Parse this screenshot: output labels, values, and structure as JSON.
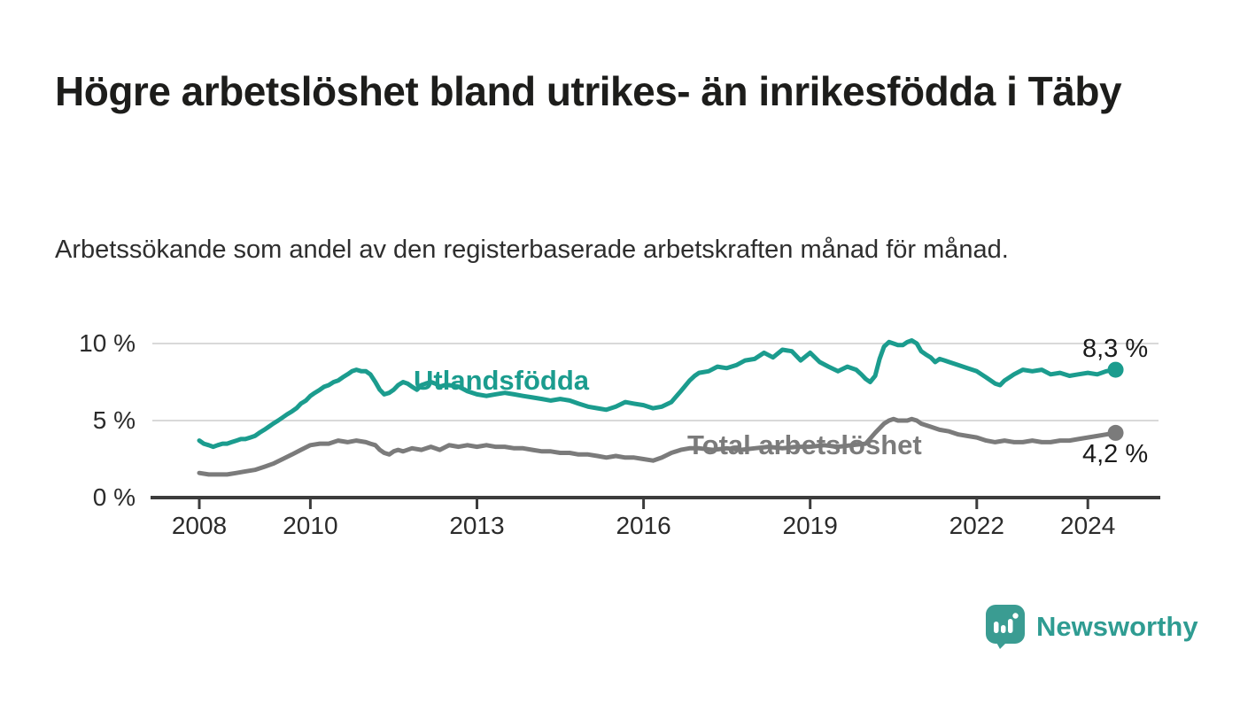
{
  "header": {
    "title": "Högre arbetslöshet bland utrikes- än inrikesfödda i Täby",
    "subtitle": "Arbetssökande som andel av den registerbaserade arbetskraften månad för månad."
  },
  "footer": {
    "brand": "Newsworthy",
    "logo_icon": "speech-bubble-bar-chart-icon"
  },
  "colors": {
    "accent_teal": "#1b9c8e",
    "logo_teal": "#3a9c92",
    "gray_line": "#7b7b7b",
    "title_text": "#1d1d1b",
    "subtitle_text": "#2e2e2e",
    "axis": "#3c3c3c",
    "grid": "#d9d9d9",
    "tick_label": "#2b2b2b",
    "value_label": "#1a1a1a"
  },
  "chart_data": {
    "type": "line",
    "unit": "%",
    "grid": "horizontal",
    "legend_position": "inline-labels",
    "xlim": [
      2007.1,
      2025.3
    ],
    "ylim": [
      0,
      11.5
    ],
    "y_ticks": [
      {
        "value": 0,
        "label": "0 %"
      },
      {
        "value": 5,
        "label": "5 %"
      },
      {
        "value": 10,
        "label": "10 %"
      }
    ],
    "x_ticks": [
      {
        "value": 2008,
        "label": "2008"
      },
      {
        "value": 2010,
        "label": "2010"
      },
      {
        "value": 2013,
        "label": "2013"
      },
      {
        "value": 2016,
        "label": "2016"
      },
      {
        "value": 2019,
        "label": "2019"
      },
      {
        "value": 2022,
        "label": "2022"
      },
      {
        "value": 2024,
        "label": "2024"
      }
    ],
    "series": [
      {
        "name": "Utlandsfödda",
        "color": "#1b9c8e",
        "end_label": "8,3 %",
        "end_value": 8.3,
        "points": [
          [
            2008,
            3.7
          ],
          [
            2008.08,
            3.5
          ],
          [
            2008.17,
            3.4
          ],
          [
            2008.25,
            3.3
          ],
          [
            2008.33,
            3.4
          ],
          [
            2008.42,
            3.5
          ],
          [
            2008.5,
            3.5
          ],
          [
            2008.58,
            3.6
          ],
          [
            2008.67,
            3.7
          ],
          [
            2008.75,
            3.8
          ],
          [
            2008.83,
            3.8
          ],
          [
            2008.92,
            3.9
          ],
          [
            2009,
            4.0
          ],
          [
            2009.08,
            4.2
          ],
          [
            2009.17,
            4.4
          ],
          [
            2009.25,
            4.6
          ],
          [
            2009.33,
            4.8
          ],
          [
            2009.42,
            5.0
          ],
          [
            2009.5,
            5.2
          ],
          [
            2009.58,
            5.4
          ],
          [
            2009.67,
            5.6
          ],
          [
            2009.75,
            5.8
          ],
          [
            2009.83,
            6.1
          ],
          [
            2009.92,
            6.3
          ],
          [
            2010,
            6.6
          ],
          [
            2010.08,
            6.8
          ],
          [
            2010.17,
            7.0
          ],
          [
            2010.25,
            7.2
          ],
          [
            2010.33,
            7.3
          ],
          [
            2010.42,
            7.5
          ],
          [
            2010.5,
            7.6
          ],
          [
            2010.58,
            7.8
          ],
          [
            2010.67,
            8.0
          ],
          [
            2010.75,
            8.2
          ],
          [
            2010.83,
            8.3
          ],
          [
            2010.92,
            8.2
          ],
          [
            2011,
            8.2
          ],
          [
            2011.08,
            8.0
          ],
          [
            2011.17,
            7.5
          ],
          [
            2011.25,
            7.0
          ],
          [
            2011.33,
            6.7
          ],
          [
            2011.42,
            6.8
          ],
          [
            2011.5,
            7.0
          ],
          [
            2011.58,
            7.3
          ],
          [
            2011.67,
            7.5
          ],
          [
            2011.75,
            7.4
          ],
          [
            2011.83,
            7.2
          ],
          [
            2011.92,
            7.0
          ],
          [
            2012,
            7.3
          ],
          [
            2012.08,
            7.4
          ],
          [
            2012.17,
            7.5
          ],
          [
            2012.25,
            7.4
          ],
          [
            2012.33,
            7.2
          ],
          [
            2012.42,
            7.3
          ],
          [
            2012.5,
            7.3
          ],
          [
            2012.67,
            7.2
          ],
          [
            2012.83,
            6.9
          ],
          [
            2013,
            6.7
          ],
          [
            2013.17,
            6.6
          ],
          [
            2013.33,
            6.7
          ],
          [
            2013.5,
            6.8
          ],
          [
            2013.67,
            6.7
          ],
          [
            2013.83,
            6.6
          ],
          [
            2014,
            6.5
          ],
          [
            2014.17,
            6.4
          ],
          [
            2014.33,
            6.3
          ],
          [
            2014.5,
            6.4
          ],
          [
            2014.67,
            6.3
          ],
          [
            2014.83,
            6.1
          ],
          [
            2015,
            5.9
          ],
          [
            2015.17,
            5.8
          ],
          [
            2015.33,
            5.7
          ],
          [
            2015.5,
            5.9
          ],
          [
            2015.67,
            6.2
          ],
          [
            2015.83,
            6.1
          ],
          [
            2016,
            6.0
          ],
          [
            2016.17,
            5.8
          ],
          [
            2016.33,
            5.9
          ],
          [
            2016.5,
            6.2
          ],
          [
            2016.67,
            6.9
          ],
          [
            2016.83,
            7.6
          ],
          [
            2016.92,
            7.9
          ],
          [
            2017,
            8.1
          ],
          [
            2017.17,
            8.2
          ],
          [
            2017.33,
            8.5
          ],
          [
            2017.5,
            8.4
          ],
          [
            2017.67,
            8.6
          ],
          [
            2017.83,
            8.9
          ],
          [
            2018,
            9.0
          ],
          [
            2018.17,
            9.4
          ],
          [
            2018.33,
            9.1
          ],
          [
            2018.5,
            9.6
          ],
          [
            2018.67,
            9.5
          ],
          [
            2018.83,
            8.9
          ],
          [
            2019,
            9.4
          ],
          [
            2019.17,
            8.8
          ],
          [
            2019.33,
            8.5
          ],
          [
            2019.5,
            8.2
          ],
          [
            2019.67,
            8.5
          ],
          [
            2019.83,
            8.3
          ],
          [
            2019.92,
            8.0
          ],
          [
            2020,
            7.7
          ],
          [
            2020.08,
            7.5
          ],
          [
            2020.17,
            7.9
          ],
          [
            2020.25,
            9.0
          ],
          [
            2020.33,
            9.8
          ],
          [
            2020.42,
            10.1
          ],
          [
            2020.5,
            10.0
          ],
          [
            2020.58,
            9.9
          ],
          [
            2020.67,
            9.9
          ],
          [
            2020.75,
            10.1
          ],
          [
            2020.83,
            10.2
          ],
          [
            2020.92,
            10.0
          ],
          [
            2021,
            9.5
          ],
          [
            2021.08,
            9.3
          ],
          [
            2021.17,
            9.1
          ],
          [
            2021.25,
            8.8
          ],
          [
            2021.33,
            9.0
          ],
          [
            2021.42,
            8.9
          ],
          [
            2021.5,
            8.8
          ],
          [
            2021.67,
            8.6
          ],
          [
            2021.83,
            8.4
          ],
          [
            2022,
            8.2
          ],
          [
            2022.17,
            7.8
          ],
          [
            2022.33,
            7.4
          ],
          [
            2022.42,
            7.3
          ],
          [
            2022.5,
            7.6
          ],
          [
            2022.67,
            8.0
          ],
          [
            2022.83,
            8.3
          ],
          [
            2023,
            8.2
          ],
          [
            2023.17,
            8.3
          ],
          [
            2023.33,
            8.0
          ],
          [
            2023.5,
            8.1
          ],
          [
            2023.67,
            7.9
          ],
          [
            2023.83,
            8.0
          ],
          [
            2024,
            8.1
          ],
          [
            2024.17,
            8.0
          ],
          [
            2024.33,
            8.2
          ],
          [
            2024.5,
            8.3
          ]
        ]
      },
      {
        "name": "Total arbetslöshet",
        "color": "#7b7b7b",
        "end_label": "4,2 %",
        "end_value": 4.2,
        "points": [
          [
            2008,
            1.6
          ],
          [
            2008.17,
            1.5
          ],
          [
            2008.33,
            1.5
          ],
          [
            2008.5,
            1.5
          ],
          [
            2008.67,
            1.6
          ],
          [
            2008.83,
            1.7
          ],
          [
            2009,
            1.8
          ],
          [
            2009.17,
            2.0
          ],
          [
            2009.33,
            2.2
          ],
          [
            2009.5,
            2.5
          ],
          [
            2009.67,
            2.8
          ],
          [
            2009.83,
            3.1
          ],
          [
            2010,
            3.4
          ],
          [
            2010.17,
            3.5
          ],
          [
            2010.33,
            3.5
          ],
          [
            2010.5,
            3.7
          ],
          [
            2010.67,
            3.6
          ],
          [
            2010.83,
            3.7
          ],
          [
            2011,
            3.6
          ],
          [
            2011.08,
            3.5
          ],
          [
            2011.17,
            3.4
          ],
          [
            2011.25,
            3.1
          ],
          [
            2011.33,
            2.9
          ],
          [
            2011.42,
            2.8
          ],
          [
            2011.5,
            3.0
          ],
          [
            2011.58,
            3.1
          ],
          [
            2011.67,
            3.0
          ],
          [
            2011.83,
            3.2
          ],
          [
            2012,
            3.1
          ],
          [
            2012.17,
            3.3
          ],
          [
            2012.33,
            3.1
          ],
          [
            2012.5,
            3.4
          ],
          [
            2012.67,
            3.3
          ],
          [
            2012.83,
            3.4
          ],
          [
            2013,
            3.3
          ],
          [
            2013.17,
            3.4
          ],
          [
            2013.33,
            3.3
          ],
          [
            2013.5,
            3.3
          ],
          [
            2013.67,
            3.2
          ],
          [
            2013.83,
            3.2
          ],
          [
            2014,
            3.1
          ],
          [
            2014.17,
            3.0
          ],
          [
            2014.33,
            3.0
          ],
          [
            2014.5,
            2.9
          ],
          [
            2014.67,
            2.9
          ],
          [
            2014.83,
            2.8
          ],
          [
            2015,
            2.8
          ],
          [
            2015.17,
            2.7
          ],
          [
            2015.33,
            2.6
          ],
          [
            2015.5,
            2.7
          ],
          [
            2015.67,
            2.6
          ],
          [
            2015.83,
            2.6
          ],
          [
            2016,
            2.5
          ],
          [
            2016.17,
            2.4
          ],
          [
            2016.33,
            2.6
          ],
          [
            2016.5,
            2.9
          ],
          [
            2016.67,
            3.1
          ],
          [
            2016.83,
            3.2
          ],
          [
            2017,
            3.2
          ],
          [
            2017.25,
            3.1
          ],
          [
            2017.5,
            3.2
          ],
          [
            2017.75,
            3.1
          ],
          [
            2018,
            3.2
          ],
          [
            2018.25,
            3.3
          ],
          [
            2018.5,
            3.2
          ],
          [
            2018.75,
            3.3
          ],
          [
            2019,
            3.3
          ],
          [
            2019.25,
            3.4
          ],
          [
            2019.5,
            3.3
          ],
          [
            2019.75,
            3.4
          ],
          [
            2020,
            3.5
          ],
          [
            2020.17,
            4.2
          ],
          [
            2020.33,
            4.8
          ],
          [
            2020.42,
            5.0
          ],
          [
            2020.5,
            5.1
          ],
          [
            2020.58,
            5.0
          ],
          [
            2020.75,
            5.0
          ],
          [
            2020.83,
            5.1
          ],
          [
            2020.92,
            5.0
          ],
          [
            2021,
            4.8
          ],
          [
            2021.17,
            4.6
          ],
          [
            2021.33,
            4.4
          ],
          [
            2021.5,
            4.3
          ],
          [
            2021.67,
            4.1
          ],
          [
            2021.83,
            4.0
          ],
          [
            2022,
            3.9
          ],
          [
            2022.17,
            3.7
          ],
          [
            2022.33,
            3.6
          ],
          [
            2022.5,
            3.7
          ],
          [
            2022.67,
            3.6
          ],
          [
            2022.83,
            3.6
          ],
          [
            2023,
            3.7
          ],
          [
            2023.17,
            3.6
          ],
          [
            2023.33,
            3.6
          ],
          [
            2023.5,
            3.7
          ],
          [
            2023.67,
            3.7
          ],
          [
            2023.83,
            3.8
          ],
          [
            2024,
            3.9
          ],
          [
            2024.17,
            4.0
          ],
          [
            2024.33,
            4.1
          ],
          [
            2024.5,
            4.2
          ]
        ]
      }
    ]
  }
}
